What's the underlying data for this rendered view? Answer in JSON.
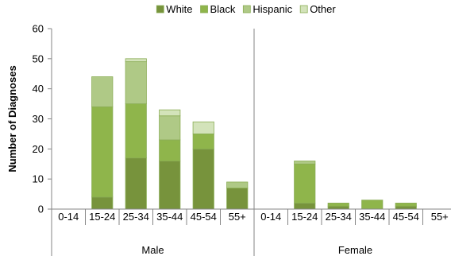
{
  "chart_data": {
    "type": "bar",
    "stacked": true,
    "title": "",
    "xlabel": "",
    "ylabel": "Number of Diagnoses",
    "ylim": [
      0,
      60
    ],
    "yticks": [
      0,
      10,
      20,
      30,
      40,
      50,
      60
    ],
    "legend_position": "top",
    "grid": false,
    "groups": [
      {
        "name": "Male",
        "categories": [
          "0-14",
          "15-24",
          "25-34",
          "35-44",
          "45-54",
          "55+"
        ]
      },
      {
        "name": "Female",
        "categories": [
          "0-14",
          "15-24",
          "25-34",
          "35-44",
          "45-54",
          "55+"
        ]
      }
    ],
    "series": [
      {
        "name": "White",
        "color": "#77933c",
        "values": [
          0,
          4,
          17,
          16,
          20,
          7,
          0,
          2,
          1,
          0,
          1,
          0
        ]
      },
      {
        "name": "Black",
        "color": "#8fb54b",
        "values": [
          0,
          30,
          18,
          7,
          5,
          0,
          0,
          13,
          1,
          3,
          1,
          0
        ]
      },
      {
        "name": "Hispanic",
        "color": "#afc986",
        "values": [
          0,
          10,
          14,
          8,
          0,
          2,
          0,
          1,
          0,
          0,
          0,
          0
        ]
      },
      {
        "name": "Other",
        "color": "#d3e3ba",
        "values": [
          0,
          0,
          1,
          2,
          4,
          0,
          0,
          0,
          0,
          0,
          0,
          0
        ]
      }
    ]
  }
}
